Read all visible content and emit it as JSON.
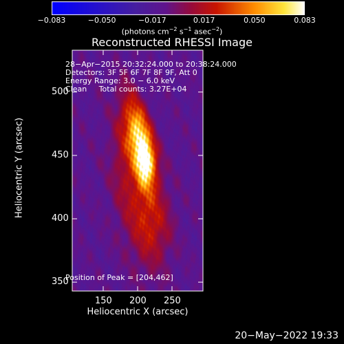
{
  "chart_data": {
    "type": "heatmap",
    "title": "Reconstructed RHESSI Image",
    "xlabel": "Heliocentric X (arcsec)",
    "ylabel": "Heliocentric Y (arcsec)",
    "xlim": [
      105,
      295
    ],
    "ylim": [
      343,
      533
    ],
    "x_ticks": [
      150,
      200,
      250
    ],
    "y_ticks": [
      350,
      400,
      450,
      500
    ],
    "colorbar": {
      "min": -0.083,
      "max": 0.083,
      "tick_values": [
        -0.083,
        -0.05,
        -0.017,
        0.017,
        0.05,
        0.083
      ],
      "tick_labels": [
        "−0.083",
        "−0.050",
        "−0.017",
        "0.017",
        "0.050",
        "0.083"
      ],
      "units_main": "(photons cm",
      "units_exp1": "−2",
      "units_mid1": " s",
      "units_exp2": "−1",
      "units_mid2": " asec",
      "units_exp3": "−2",
      "units_end": ")"
    },
    "info_lines": [
      "28−Apr−2015 20:32:24.000 to 20:38:24.000",
      "Detectors: 3F 5F 6F 7F 8F 9F, Att 0",
      "Energy Range: 3.0 − 6.0 keV",
      "Clean     Total counts: 3.27E+04"
    ],
    "peak_label": "Position of Peak = [204,462]",
    "peak": [
      204,
      462
    ],
    "sources": [
      {
        "x": 204,
        "y": 462,
        "sx": 11,
        "sy": 22,
        "amp": 0.08,
        "angle_deg": -25
      },
      {
        "x": 212,
        "y": 442,
        "sx": 9,
        "sy": 12,
        "amp": 0.045,
        "angle_deg": 0
      },
      {
        "x": 200,
        "y": 420,
        "sx": 22,
        "sy": 40,
        "amp": 0.03,
        "angle_deg": -20
      },
      {
        "x": 225,
        "y": 395,
        "sx": 18,
        "sy": 20,
        "amp": 0.018,
        "angle_deg": 0
      },
      {
        "x": 180,
        "y": 470,
        "sx": 10,
        "sy": 30,
        "amp": 0.01,
        "angle_deg": 0
      }
    ]
  },
  "timestamp": "20−May−2022 19:33"
}
